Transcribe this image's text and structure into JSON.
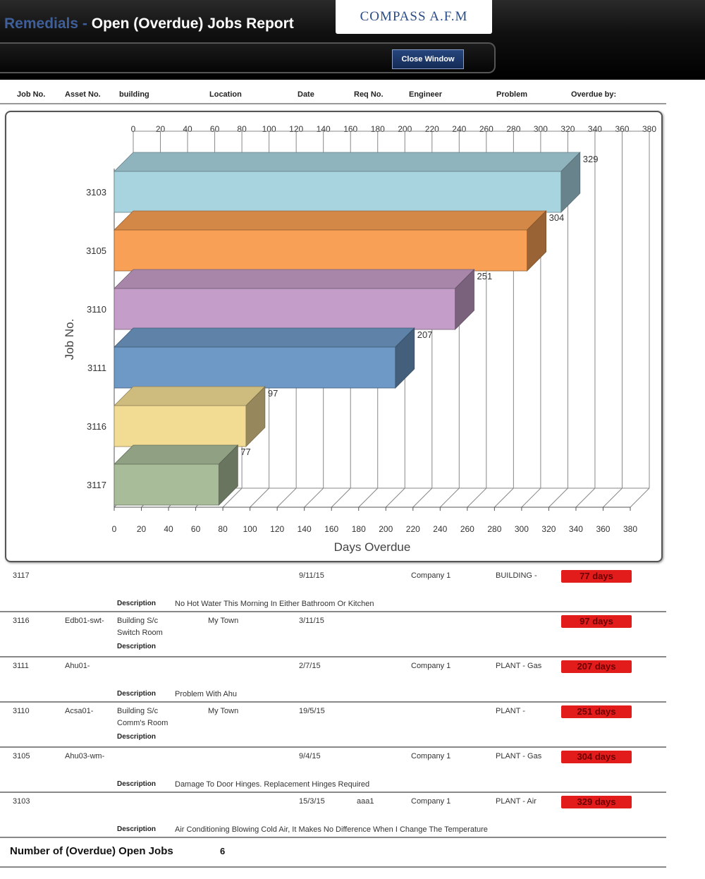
{
  "header": {
    "title_prefix": "Remedials",
    "title_dash": " - ",
    "title": "Open (Overdue) Jobs Report",
    "logo": "COMPASS A.F.M",
    "close_button": "Close Window"
  },
  "columns": [
    "Job No.",
    "Asset No.",
    "building",
    "Location",
    "Date",
    "Req No.",
    "Engineer",
    "Problem",
    "Overdue by:"
  ],
  "chart_data": {
    "type": "bar",
    "orientation": "horizontal",
    "categories": [
      "3103",
      "3105",
      "3110",
      "3111",
      "3116",
      "3117"
    ],
    "values": [
      329,
      304,
      251,
      207,
      97,
      77
    ],
    "value_labels": [
      "329",
      "304",
      "251",
      "207",
      "97",
      "77"
    ],
    "colors": [
      "#a8d4e0",
      "#f8a055",
      "#c49ec8",
      "#6e99c6",
      "#f2dc94",
      "#a9bc99"
    ],
    "xlabel": "Days Overdue",
    "ylabel": "Job No.",
    "xlim": [
      0,
      380
    ],
    "xticks": [
      "0",
      "20",
      "40",
      "60",
      "80",
      "100",
      "120",
      "140",
      "160",
      "180",
      "200",
      "220",
      "240",
      "260",
      "280",
      "300",
      "320",
      "340",
      "360",
      "380"
    ],
    "grid": true,
    "three_d": true
  },
  "jobs": [
    {
      "job_no": "3117",
      "asset_no": "",
      "building": "",
      "building2": "",
      "location": "",
      "date": "9/11/15",
      "req_no": "",
      "engineer": "Company 1",
      "problem": "BUILDING -",
      "overdue": "77 days",
      "desc_label": "Description",
      "description": "No Hot Water This Morning In Either Bathroom Or Kitchen"
    },
    {
      "job_no": "3116",
      "asset_no": "Edb01-swt-",
      "building": "Building S/c",
      "building2": "Switch Room",
      "location": "My Town",
      "date": "3/11/15",
      "req_no": "",
      "engineer": "",
      "problem": "",
      "overdue": "97 days",
      "desc_label": "Description",
      "description": ""
    },
    {
      "job_no": "3111",
      "asset_no": "Ahu01-",
      "building": "",
      "building2": "",
      "location": "",
      "date": "2/7/15",
      "req_no": "",
      "engineer": "Company 1",
      "problem": "PLANT - Gas",
      "overdue": "207 days",
      "desc_label": "Description",
      "description": "Problem With Ahu"
    },
    {
      "job_no": "3110",
      "asset_no": "Acsa01-",
      "building": "Building S/c",
      "building2": "Comm's Room",
      "location": "My Town",
      "date": "19/5/15",
      "req_no": "",
      "engineer": "",
      "problem": "PLANT -",
      "overdue": "251 days",
      "desc_label": "Description",
      "description": ""
    },
    {
      "job_no": "3105",
      "asset_no": "Ahu03-wm-",
      "building": "",
      "building2": "",
      "location": "",
      "date": "9/4/15",
      "req_no": "",
      "engineer": "Company 1",
      "problem": "PLANT - Gas",
      "overdue": "304 days",
      "desc_label": "Description",
      "description": "Damage To Door Hinges. Replacement Hinges Required"
    },
    {
      "job_no": "3103",
      "asset_no": "",
      "building": "",
      "building2": "",
      "location": "",
      "date": "15/3/15",
      "req_no": "aaa1",
      "engineer": "Company 1",
      "problem": "PLANT - Air",
      "overdue": "329 days",
      "desc_label": "Description",
      "description": "Air Conditioning Blowing Cold Air, It Makes No Difference When I Change The Temperature"
    }
  ],
  "footer": {
    "label": "Number of (Overdue) Open Jobs",
    "count": "6"
  }
}
